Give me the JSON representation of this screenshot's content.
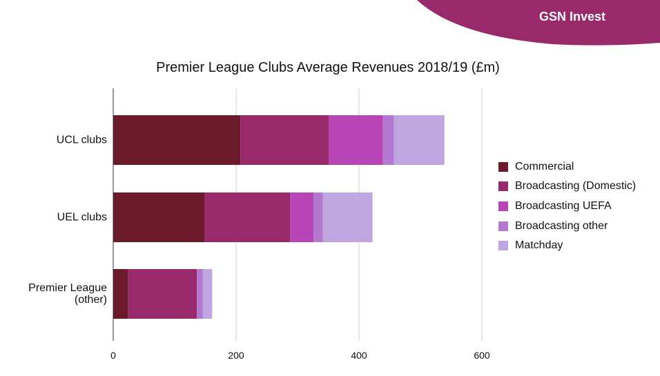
{
  "brand": {
    "name": "GSN Invest",
    "color": "#98296b"
  },
  "chart_data": {
    "type": "bar",
    "orientation": "horizontal",
    "stacked": true,
    "title": "Premier League Clubs Average Revenues 2018/19 (£m)",
    "xlabel": "",
    "ylabel": "",
    "xlim": [
      0,
      600
    ],
    "xticks": [
      0,
      200,
      400,
      600
    ],
    "grid": true,
    "legend_position": "right",
    "categories": [
      "UCL clubs",
      "UEL clubs",
      "Premier League (other)"
    ],
    "category_display_lines": [
      [
        "UCL clubs"
      ],
      [
        "UEL clubs"
      ],
      [
        "Premier League",
        "(other)"
      ]
    ],
    "series": [
      {
        "name": "Commercial",
        "color": "#6b1a2b",
        "values": [
          207,
          149,
          24
        ]
      },
      {
        "name": "Broadcasting (Domestic)",
        "color": "#98296b",
        "values": [
          144,
          139,
          112
        ]
      },
      {
        "name": "Broadcasting UEFA",
        "color": "#b745b5",
        "values": [
          88,
          38,
          0
        ]
      },
      {
        "name": "Broadcasting other",
        "color": "#b378cf",
        "values": [
          18,
          15,
          10
        ]
      },
      {
        "name": "Matchday",
        "color": "#c0a6e0",
        "values": [
          82,
          81,
          15
        ]
      }
    ]
  }
}
